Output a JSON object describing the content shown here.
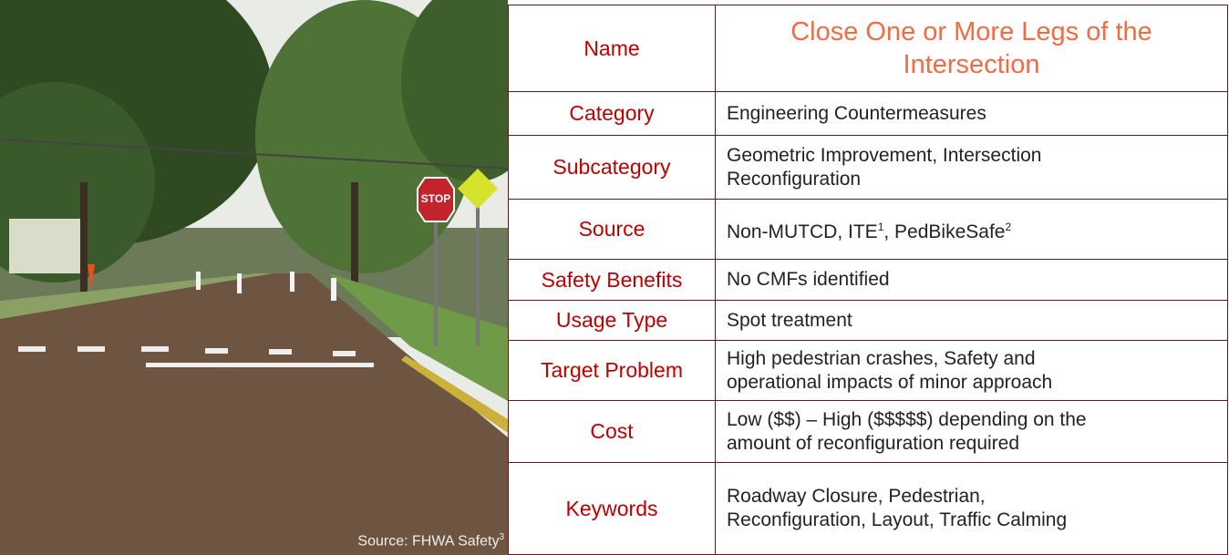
{
  "photo": {
    "caption": "Source: FHWA Safety",
    "caption_sup": "3"
  },
  "table": {
    "name": {
      "label": "Name",
      "value": [
        "Close One or More Legs of the",
        "Intersection"
      ]
    },
    "rows": [
      {
        "label": "Category",
        "value": [
          "Engineering Countermeasures"
        ]
      },
      {
        "label": "Subcategory",
        "value": [
          "Geometric Improvement, Intersection",
          "Reconfiguration"
        ]
      },
      {
        "label": "Source",
        "segments": [
          {
            "text": "Non-MUTCD, ITE"
          },
          {
            "sup": "1"
          },
          {
            "text": ", PedBikeSafe"
          },
          {
            "sup": "2"
          }
        ]
      },
      {
        "label": "Safety Benefits",
        "value": [
          "No CMFs identified"
        ]
      },
      {
        "label": "Usage Type",
        "value": [
          "Spot treatment"
        ]
      },
      {
        "label": "Target Problem",
        "value": [
          "High pedestrian crashes, Safety and",
          "operational impacts of minor approach"
        ]
      },
      {
        "label": "Cost",
        "value": [
          "Low ($$) – High ($$$$$) depending on the",
          "amount of reconfiguration required"
        ]
      },
      {
        "label": "Keywords",
        "value": [
          "Roadway Closure, Pedestrian,",
          "Reconfiguration, Layout, Traffic Calming"
        ]
      }
    ]
  }
}
